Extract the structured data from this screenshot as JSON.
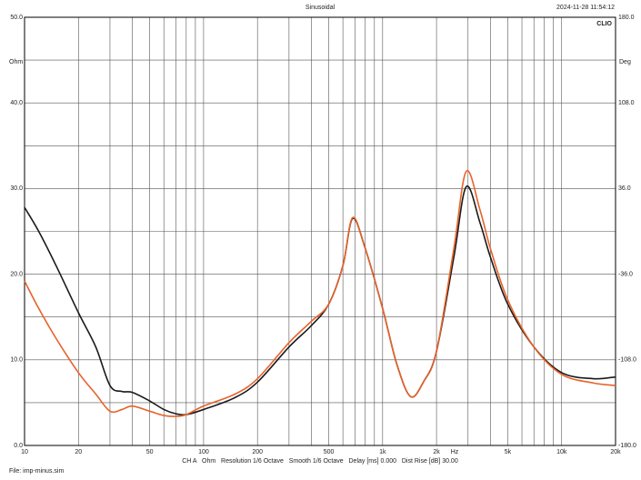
{
  "chart_data": {
    "type": "line",
    "title": "Sinusoidal",
    "timestamp": "2024-11-28 11:54:12",
    "brand": "CLIO",
    "y_unit": "Ohm",
    "y2_unit": "Deg",
    "x_unit": "Hz",
    "footer": "CH A   Ohm   Resolution 1/6 Octave   Smooth 1/6 Octave   Delay [ms] 0.000   Dist Rise [dB] 30.00",
    "file": "File: imp-minus.sim",
    "xscale": "log",
    "xlim": [
      10,
      20000
    ],
    "xticks": [
      10,
      20,
      50,
      100,
      200,
      500,
      {
        "value": 1000,
        "label": "1k"
      },
      {
        "value": 2000,
        "label": "2k"
      },
      {
        "value": 5000,
        "label": "5k"
      },
      {
        "value": 10000,
        "label": "10k"
      },
      {
        "value": 20000,
        "label": "20k"
      }
    ],
    "xgrid": [
      10,
      20,
      30,
      40,
      50,
      60,
      70,
      80,
      90,
      100,
      200,
      300,
      400,
      500,
      600,
      700,
      800,
      900,
      1000,
      2000,
      3000,
      4000,
      5000,
      6000,
      7000,
      8000,
      9000,
      10000,
      20000
    ],
    "ylim": [
      0,
      50
    ],
    "yticks": [
      {
        "value": 0,
        "label": "0.0"
      },
      {
        "value": 10,
        "label": "10.0"
      },
      {
        "value": 20,
        "label": "20.0"
      },
      {
        "value": 30,
        "label": "30.0"
      },
      {
        "value": 40,
        "label": "40.0"
      },
      {
        "value": 50,
        "label": "50.0"
      }
    ],
    "ygrid": [
      0,
      5,
      10,
      15,
      20,
      25,
      30,
      35,
      40,
      45,
      50
    ],
    "y2lim": [
      -180,
      180
    ],
    "y2ticks": [
      {
        "value": -180,
        "label": "-180.0"
      },
      {
        "value": -108,
        "label": "-108.0"
      },
      {
        "value": -36,
        "label": "-36.0"
      },
      {
        "value": 36,
        "label": "36.0"
      },
      {
        "value": 108,
        "label": "108.0"
      },
      {
        "value": 180,
        "label": "180.0"
      }
    ],
    "grid": true,
    "x": [
      10,
      12,
      15,
      20,
      25,
      30,
      35,
      40,
      50,
      60,
      70,
      80,
      100,
      150,
      200,
      300,
      400,
      500,
      600,
      680,
      800,
      1000,
      1200,
      1435,
      1700,
      2000,
      2500,
      2930,
      3500,
      4000,
      5000,
      7000,
      10000,
      15000,
      20000
    ],
    "series": [
      {
        "color": "#1a1a1a",
        "values": [
          27.8,
          25,
          21,
          15.5,
          11.5,
          7.0,
          6.3,
          6.2,
          5.2,
          4.2,
          3.7,
          3.6,
          4.2,
          5.6,
          7.4,
          11.5,
          14,
          16.5,
          21,
          26.5,
          23,
          16,
          9.5,
          5.7,
          7.5,
          11,
          22,
          30.2,
          26,
          22,
          16.5,
          11.5,
          8.5,
          7.8,
          8.0
        ]
      },
      {
        "color": "#e8622a",
        "values": [
          19.2,
          16,
          12.5,
          8.5,
          6,
          4.0,
          4.2,
          4.6,
          4.0,
          3.5,
          3.4,
          3.6,
          4.6,
          6.0,
          7.8,
          12,
          14.5,
          16.5,
          21,
          26.6,
          23,
          16,
          9.5,
          5.7,
          7.5,
          11,
          23,
          32,
          27.5,
          23,
          17,
          11.5,
          8.3,
          7.3,
          7.0
        ]
      }
    ]
  }
}
